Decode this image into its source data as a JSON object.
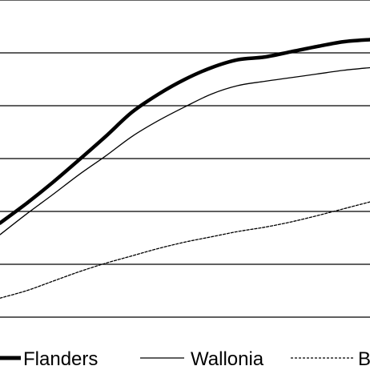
{
  "chart_data": {
    "type": "line",
    "title": "",
    "xlabel": "",
    "ylabel": "",
    "grid": true,
    "grid_color": "#000000",
    "legend_position": "bottom",
    "ylim": [
      0,
      6
    ],
    "xlim": [
      0,
      14
    ],
    "y_gridlines": [
      1,
      2,
      3,
      4,
      5,
      6
    ],
    "series": [
      {
        "name": "Flanders",
        "color": "#000000",
        "style": "thick",
        "x": [
          0,
          1,
          2,
          3,
          4,
          5,
          6,
          7,
          8,
          9,
          10,
          11,
          12,
          13,
          14
        ],
        "y": [
          1.78,
          2.15,
          2.55,
          2.98,
          3.42,
          3.88,
          4.22,
          4.5,
          4.72,
          4.87,
          4.92,
          5.02,
          5.12,
          5.21,
          5.25
        ]
      },
      {
        "name": "Wallonia",
        "color": "#000000",
        "style": "thin",
        "x": [
          0,
          1,
          2,
          3,
          4,
          5,
          6,
          7,
          8,
          9,
          10,
          11,
          12,
          13,
          14
        ],
        "y": [
          1.56,
          1.95,
          2.32,
          2.7,
          3.05,
          3.42,
          3.72,
          3.98,
          4.22,
          4.38,
          4.46,
          4.53,
          4.6,
          4.67,
          4.72
        ]
      },
      {
        "name": "B",
        "color": "#000000",
        "style": "dashed",
        "x": [
          0,
          1,
          2,
          3,
          4,
          5,
          6,
          7,
          8,
          9,
          10,
          11,
          12,
          13,
          14
        ],
        "y": [
          0.36,
          0.5,
          0.68,
          0.86,
          1.02,
          1.16,
          1.3,
          1.42,
          1.52,
          1.62,
          1.7,
          1.8,
          1.92,
          2.05,
          2.18
        ]
      }
    ]
  }
}
